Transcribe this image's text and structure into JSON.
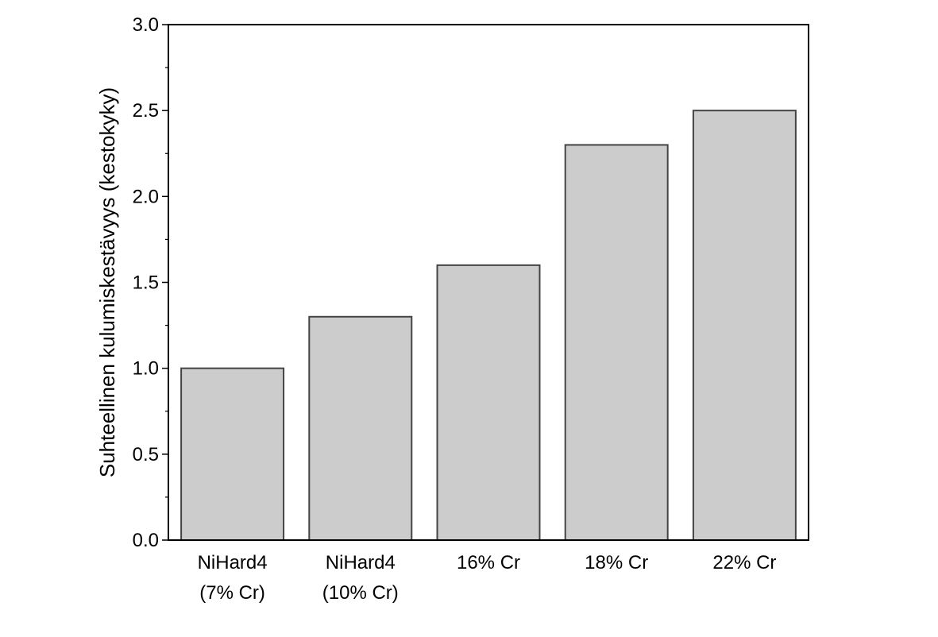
{
  "chart_data": {
    "type": "bar",
    "categories": [
      [
        "NiHard4",
        "(7% Cr)"
      ],
      [
        "NiHard4",
        "(10% Cr)"
      ],
      [
        "16% Cr"
      ],
      [
        "18% Cr"
      ],
      [
        "22% Cr"
      ]
    ],
    "values": [
      1.0,
      1.3,
      1.6,
      2.3,
      2.5
    ],
    "title": "",
    "xlabel": "",
    "ylabel": "Suhteellinen kulumiskestävyys (kestokyky)",
    "ylim": [
      0,
      3.0
    ],
    "yticks": [
      "0.0",
      "0.5",
      "1.0",
      "1.5",
      "2.0",
      "2.5",
      "3.0"
    ],
    "bar_color": "#cccccc",
    "bar_edge_color": "#444444",
    "grid": false,
    "legend": "none"
  }
}
